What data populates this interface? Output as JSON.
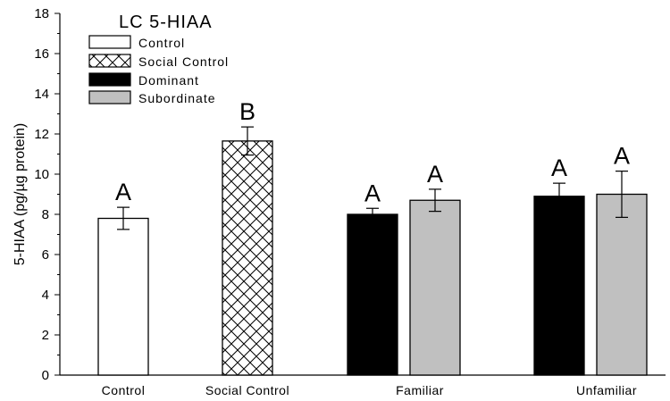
{
  "chart_data": {
    "type": "bar",
    "title": "LC 5-HIAA",
    "ylabel": "5-HIAA (pg/µg protein)",
    "xlabel": "",
    "ylim": [
      0,
      18
    ],
    "yticks": [
      0,
      2,
      4,
      6,
      8,
      10,
      12,
      14,
      16,
      18
    ],
    "grid": false,
    "legend_position": "top-left",
    "groups": [
      "Control",
      "Social Control",
      "Familiar",
      "Unfamiliar"
    ],
    "legend": [
      {
        "name": "Control",
        "fill": "white"
      },
      {
        "name": "Social Control",
        "fill": "crosshatch"
      },
      {
        "name": "Dominant",
        "fill": "black"
      },
      {
        "name": "Subordinate",
        "fill": "gray"
      }
    ],
    "bars": [
      {
        "group": "Control",
        "series": "Control",
        "value": 7.8,
        "error": 0.55,
        "label": "A"
      },
      {
        "group": "Social Control",
        "series": "Social Control",
        "value": 11.65,
        "error": 0.7,
        "label": "B"
      },
      {
        "group": "Familiar",
        "series": "Dominant",
        "value": 8.0,
        "error": 0.3,
        "label": "A"
      },
      {
        "group": "Familiar",
        "series": "Subordinate",
        "value": 8.7,
        "error": 0.55,
        "label": "A"
      },
      {
        "group": "Unfamiliar",
        "series": "Dominant",
        "value": 8.9,
        "error": 0.65,
        "label": "A"
      },
      {
        "group": "Unfamiliar",
        "series": "Subordinate",
        "value": 9.0,
        "error": 1.15,
        "label": "A"
      }
    ]
  },
  "colors": {
    "Control": "#ffffff",
    "Social Control": "#ffffff",
    "Dominant": "#000000",
    "Subordinate": "#c0c0c0",
    "stroke": "#000000"
  }
}
